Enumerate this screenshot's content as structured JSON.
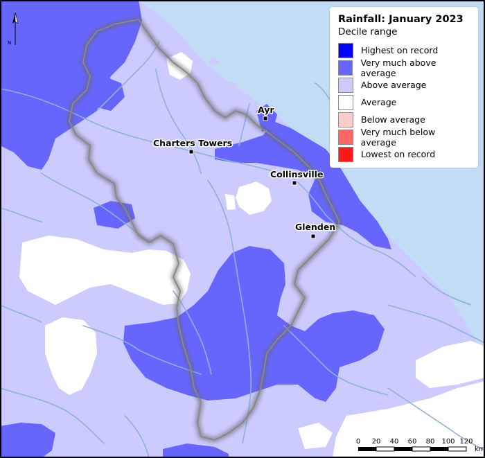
{
  "legend": {
    "title": "Rainfall: January 2023",
    "subtitle": "Decile range",
    "items": [
      {
        "label": "Highest on record",
        "color": "#0000ff"
      },
      {
        "label": "Very much above average",
        "color": "#6666ff"
      },
      {
        "label": "Above average",
        "color": "#cbcbff"
      },
      {
        "label": "Average",
        "color": "#ffffff"
      },
      {
        "label": "Below average",
        "color": "#ffcccc"
      },
      {
        "label": "Very much below average",
        "color": "#ff6666"
      },
      {
        "label": "Lowest on record",
        "color": "#ff1a1a"
      }
    ]
  },
  "places": {
    "ayr": "Ayr",
    "charters_towers": "Charters Towers",
    "collinsville": "Collinsville",
    "glenden": "Glenden"
  },
  "north_arrow": {
    "label": "N"
  },
  "scale_bar": {
    "ticks": [
      "0",
      "20",
      "40",
      "60",
      "80",
      "100",
      "120"
    ],
    "unit": "km"
  },
  "colors": {
    "sea": "#c2dcf6",
    "river": "#8cb2d6",
    "boundary": "#888888"
  }
}
